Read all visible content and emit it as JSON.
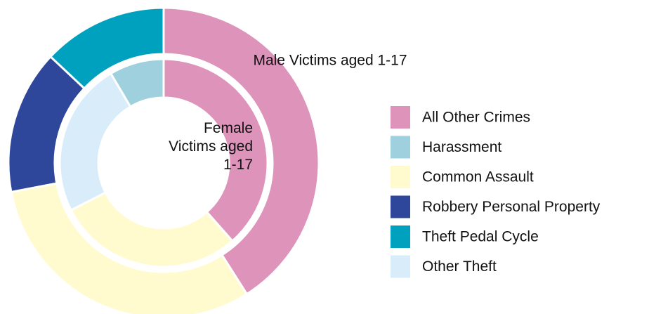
{
  "chart_data": {
    "type": "donut",
    "categories": [
      "All Other Crimes",
      "Harassment",
      "Common Assault",
      "Robbery Personal Property",
      "Theft Pedal Cycle",
      "Other Theft"
    ],
    "colors": [
      "#de93bb",
      "#9fd0dd",
      "#fffbcf",
      "#2e479a",
      "#00a0bf",
      "#d9ecfa"
    ],
    "series": [
      {
        "name": "Male Victims aged 1-17",
        "values": [
          41,
          0,
          31,
          15,
          13,
          0
        ]
      },
      {
        "name": "Female Victims aged 1-17",
        "values": [
          38.5,
          8.5,
          29,
          0,
          0,
          24
        ]
      }
    ]
  }
}
